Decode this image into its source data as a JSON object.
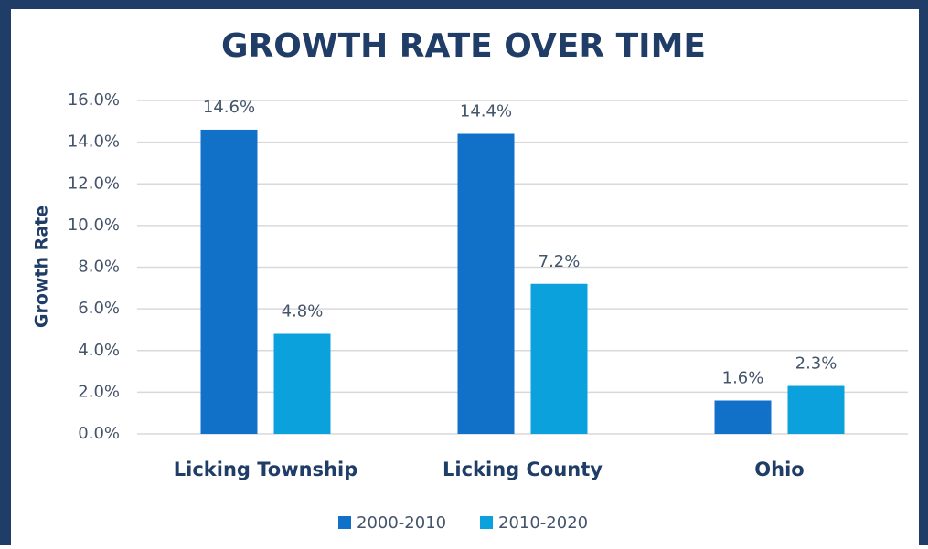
{
  "chart_data": {
    "type": "bar",
    "title": "GROWTH RATE OVER TIME",
    "y_label": "Growth Rate",
    "categories": [
      "Licking Township",
      "Licking County",
      "Ohio"
    ],
    "series": [
      {
        "name": "2000-2010",
        "color": "#1170c7",
        "values": [
          14.6,
          14.4,
          1.6
        ],
        "value_labels": [
          "14.6%",
          "14.4%",
          "1.6%"
        ]
      },
      {
        "name": "2010-2020",
        "color": "#0ba1dc",
        "values": [
          4.8,
          7.2,
          2.3
        ],
        "value_labels": [
          "4.8%",
          "7.2%",
          "2.3%"
        ]
      }
    ],
    "ylim": [
      0,
      16
    ],
    "yticks": [
      {
        "value": 0,
        "label": "0.0%"
      },
      {
        "value": 2,
        "label": "2.0%"
      },
      {
        "value": 4,
        "label": "4.0%"
      },
      {
        "value": 6,
        "label": "6.0%"
      },
      {
        "value": 8,
        "label": "8.0%"
      },
      {
        "value": 10,
        "label": "10.0%"
      },
      {
        "value": 12,
        "label": "12.0%"
      },
      {
        "value": 14,
        "label": "14.0%"
      },
      {
        "value": 16,
        "label": "16.0%"
      }
    ],
    "grid": true,
    "legend": "bottom"
  }
}
